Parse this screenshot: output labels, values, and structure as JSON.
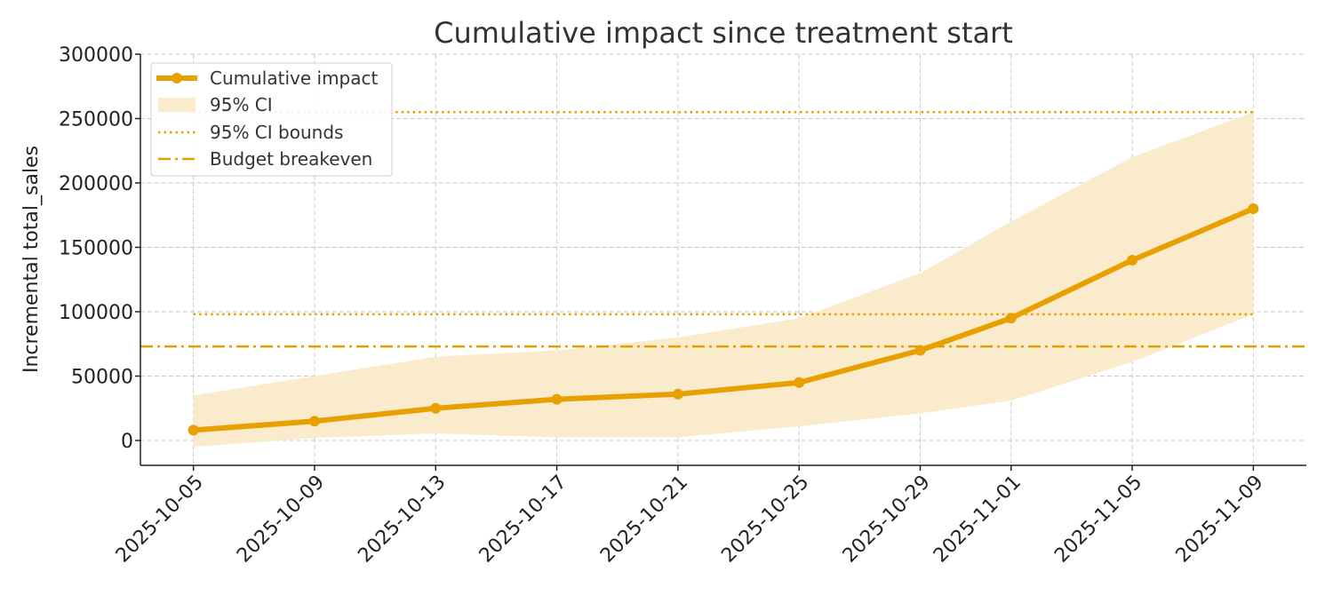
{
  "chart_data": {
    "type": "line",
    "title": "Cumulative impact since treatment start",
    "xlabel": "",
    "ylabel": "Incremental total_sales",
    "x": [
      "2025-10-05",
      "2025-10-09",
      "2025-10-13",
      "2025-10-17",
      "2025-10-21",
      "2025-10-25",
      "2025-10-29",
      "2025-11-01",
      "2025-11-05",
      "2025-11-09"
    ],
    "xticks": [
      "2025-10-05",
      "2025-10-09",
      "2025-10-13",
      "2025-10-17",
      "2025-10-21",
      "2025-10-25",
      "2025-10-29",
      "2025-11-01",
      "2025-11-05",
      "2025-11-09"
    ],
    "yticks": [
      0,
      50000,
      100000,
      150000,
      200000,
      250000,
      300000
    ],
    "ylim": [
      -20000,
      300000
    ],
    "grid": true,
    "legend_position": "top-left",
    "series": [
      {
        "name": "Cumulative impact",
        "values": [
          8000,
          15000,
          25000,
          32000,
          36000,
          45000,
          70000,
          95000,
          140000,
          180000
        ],
        "color": "#E8A000"
      }
    ],
    "ci": {
      "name": "95% CI",
      "lower": [
        -5000,
        2000,
        5500,
        2500,
        2500,
        11000,
        21000,
        31000,
        61000,
        98000
      ],
      "upper": [
        35000,
        50000,
        65000,
        70000,
        80000,
        95000,
        130000,
        170000,
        220000,
        255000
      ],
      "color": "#FAEBCC"
    },
    "ci_bounds": {
      "name": "95% CI bounds",
      "values": [
        255000,
        98000
      ],
      "color": "#E8A000"
    },
    "breakeven": {
      "name": "Budget breakeven",
      "value": 73000,
      "color": "#E0A000"
    }
  }
}
